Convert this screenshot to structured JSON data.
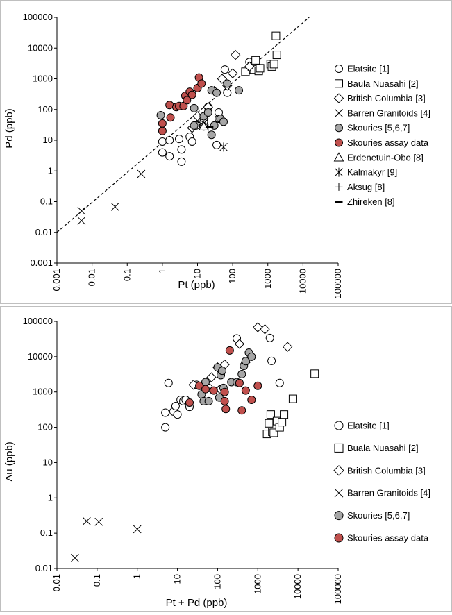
{
  "colors": {
    "marker_stroke": "#000000",
    "open_fill": "#ffffff",
    "grey_fill": "#a6a6a6",
    "red_fill": "#c0504d",
    "panel_border": "#bfbfbf",
    "trend_line": "#000000"
  },
  "chart_data": [
    {
      "type": "scatter",
      "xscale": "log",
      "yscale": "log",
      "xlabel": "Pt (ppb)",
      "ylabel": "Pd (ppb)",
      "xlim": [
        0.001,
        100000
      ],
      "ylim": [
        0.001,
        100000
      ],
      "xticks": [
        "0.001",
        "0.01",
        "0.1",
        "1",
        "10",
        "100",
        "1000",
        "10000",
        "100000"
      ],
      "yticks": [
        "0.001",
        "0.01",
        "0.1",
        "1",
        "10",
        "100",
        "1000",
        "10000",
        "100000"
      ],
      "legend_position": "right",
      "trend_line": {
        "style": "dashed",
        "from": [
          0.001,
          0.01
        ],
        "to": [
          15000,
          100000
        ]
      },
      "series": [
        {
          "name": "Elatsite [1]",
          "marker": "circle",
          "fill": "open",
          "points": [
            [
              1,
              4
            ],
            [
              1,
              9
            ],
            [
              1.6,
              10
            ],
            [
              1.6,
              3
            ],
            [
              3,
              11
            ],
            [
              3.5,
              5
            ],
            [
              3.5,
              2
            ],
            [
              6,
              13
            ],
            [
              7,
              9
            ],
            [
              9,
              30
            ],
            [
              12,
              50
            ],
            [
              15,
              40
            ],
            [
              20,
              120
            ],
            [
              35,
              7
            ],
            [
              40,
              80
            ],
            [
              60,
              2000
            ],
            [
              70,
              350
            ],
            [
              300,
              3500
            ],
            [
              330,
              2000
            ]
          ]
        },
        {
          "name": "Baula Nuasahi [2]",
          "marker": "square",
          "fill": "open",
          "points": [
            [
              230,
              1700
            ],
            [
              350,
              2500
            ],
            [
              400,
              2000
            ],
            [
              450,
              4000
            ],
            [
              550,
              1800
            ],
            [
              600,
              2200
            ],
            [
              1200,
              3000
            ],
            [
              1300,
              2500
            ],
            [
              1500,
              3000
            ],
            [
              1700,
              25000
            ],
            [
              1800,
              6000
            ]
          ]
        },
        {
          "name": "British Columbia [3]",
          "marker": "diamond",
          "fill": "open",
          "points": [
            [
              7,
              25
            ],
            [
              10,
              60
            ],
            [
              15,
              50
            ],
            [
              20,
              120
            ],
            [
              30,
              400
            ],
            [
              50,
              1000
            ],
            [
              70,
              600
            ],
            [
              100,
              1500
            ],
            [
              120,
              6000
            ],
            [
              300,
              2500
            ]
          ]
        },
        {
          "name": "Barren Granitoids [4]",
          "marker": "x",
          "fill": "none",
          "points": [
            [
              0.005,
              0.05
            ],
            [
              0.005,
              0.024
            ],
            [
              0.045,
              0.068
            ],
            [
              0.25,
              0.8
            ]
          ]
        },
        {
          "name": "Skouries [5,6,7]",
          "marker": "circle",
          "fill": "grey",
          "points": [
            [
              0.9,
              65
            ],
            [
              8,
              110
            ],
            [
              8,
              30
            ],
            [
              15,
              60
            ],
            [
              15,
              28
            ],
            [
              20,
              80
            ],
            [
              25,
              420
            ],
            [
              25,
              15
            ],
            [
              30,
              30
            ],
            [
              35,
              350
            ],
            [
              40,
              50
            ],
            [
              45,
              50
            ],
            [
              55,
              40
            ],
            [
              70,
              700
            ],
            [
              150,
              420
            ]
          ]
        },
        {
          "name": "Skouries assay data",
          "marker": "circle",
          "fill": "red",
          "points": [
            [
              1,
              35
            ],
            [
              1,
              20
            ],
            [
              1.6,
              140
            ],
            [
              1.7,
              55
            ],
            [
              2.5,
              120
            ],
            [
              3,
              130
            ],
            [
              4,
              130
            ],
            [
              4.5,
              280
            ],
            [
              5,
              200
            ],
            [
              6,
              380
            ],
            [
              7,
              300
            ],
            [
              10,
              500
            ],
            [
              11,
              1100
            ],
            [
              13,
              700
            ]
          ]
        },
        {
          "name": "Erdenetuin-Obo [8]",
          "marker": "triangle",
          "fill": "open",
          "points": [
            [
              15,
              28
            ]
          ]
        },
        {
          "name": "Kalmakyr [9]",
          "marker": "asterisk",
          "fill": "none",
          "points": [
            [
              55,
              6
            ]
          ]
        },
        {
          "name": "Aksug [8]",
          "marker": "plus",
          "fill": "none",
          "points": [
            [
              20,
              25
            ]
          ]
        },
        {
          "name": "Zhireken [8]",
          "marker": "dash",
          "fill": "none",
          "points": [
            [
              22,
              27
            ]
          ]
        }
      ]
    },
    {
      "type": "scatter",
      "xscale": "log",
      "yscale": "log",
      "xlabel": "Pt + Pd (ppb)",
      "ylabel": "Au (ppb)",
      "xlim": [
        0.01,
        100000
      ],
      "ylim": [
        0.01,
        100000
      ],
      "xticks": [
        "0.01",
        "0.1",
        "1",
        "10",
        "100",
        "1000",
        "10000",
        "100000"
      ],
      "yticks": [
        "0.01",
        "0.1",
        "1",
        "10",
        "100",
        "1000",
        "10000",
        "100000"
      ],
      "legend_position": "right",
      "series": [
        {
          "name": "Elatsite [1]",
          "marker": "circle",
          "fill": "open",
          "points": [
            [
              5,
              100
            ],
            [
              5,
              260
            ],
            [
              6,
              1800
            ],
            [
              8,
              280
            ],
            [
              9,
              400
            ],
            [
              10,
              230
            ],
            [
              12,
              600
            ],
            [
              14,
              550
            ],
            [
              16,
              600
            ],
            [
              20,
              380
            ],
            [
              30,
              1600
            ],
            [
              60,
              1300
            ],
            [
              120,
              1200
            ],
            [
              300,
              33000
            ],
            [
              2000,
              34000
            ],
            [
              2200,
              7600
            ],
            [
              3500,
              1800
            ]
          ]
        },
        {
          "name": "Buala Nuasahi [2]",
          "marker": "square",
          "fill": "open",
          "points": [
            [
              1700,
              65
            ],
            [
              1900,
              130
            ],
            [
              2100,
              230
            ],
            [
              2300,
              75
            ],
            [
              2500,
              70
            ],
            [
              3000,
              150
            ],
            [
              3500,
              100
            ],
            [
              4000,
              140
            ],
            [
              4500,
              230
            ],
            [
              7500,
              640
            ],
            [
              26000,
              3300
            ]
          ]
        },
        {
          "name": "British Columbia [3]",
          "marker": "diamond",
          "fill": "open",
          "points": [
            [
              25,
              1600
            ],
            [
              70,
              2600
            ],
            [
              100,
              5000
            ],
            [
              150,
              6000
            ],
            [
              350,
              23000
            ],
            [
              500,
              7000
            ],
            [
              1000,
              68000
            ],
            [
              1500,
              60000
            ],
            [
              5500,
              19000
            ]
          ]
        },
        {
          "name": "Barren Granitoids [4]",
          "marker": "x",
          "fill": "none",
          "points": [
            [
              0.028,
              0.02
            ],
            [
              0.055,
              0.22
            ],
            [
              0.11,
              0.21
            ],
            [
              1,
              0.13
            ]
          ]
        },
        {
          "name": "Skouries [5,6,7]",
          "marker": "circle",
          "fill": "grey",
          "points": [
            [
              40,
              850
            ],
            [
              45,
              550
            ],
            [
              50,
              1900
            ],
            [
              60,
              550
            ],
            [
              100,
              5000
            ],
            [
              110,
              700
            ],
            [
              120,
              3000
            ],
            [
              130,
              4000
            ],
            [
              140,
              1300
            ],
            [
              220,
              1900
            ],
            [
              300,
              1900
            ],
            [
              400,
              3200
            ],
            [
              450,
              5500
            ],
            [
              500,
              7500
            ],
            [
              600,
              13000
            ],
            [
              700,
              10000
            ]
          ]
        },
        {
          "name": "Skouries assay data",
          "marker": "circle",
          "fill": "red",
          "points": [
            [
              20,
              500
            ],
            [
              35,
              1500
            ],
            [
              50,
              1200
            ],
            [
              80,
              1100
            ],
            [
              150,
              1000
            ],
            [
              150,
              550
            ],
            [
              160,
              330
            ],
            [
              200,
              15000
            ],
            [
              350,
              1800
            ],
            [
              400,
              300
            ],
            [
              500,
              1100
            ],
            [
              700,
              600
            ],
            [
              1000,
              1500
            ]
          ]
        }
      ]
    }
  ]
}
